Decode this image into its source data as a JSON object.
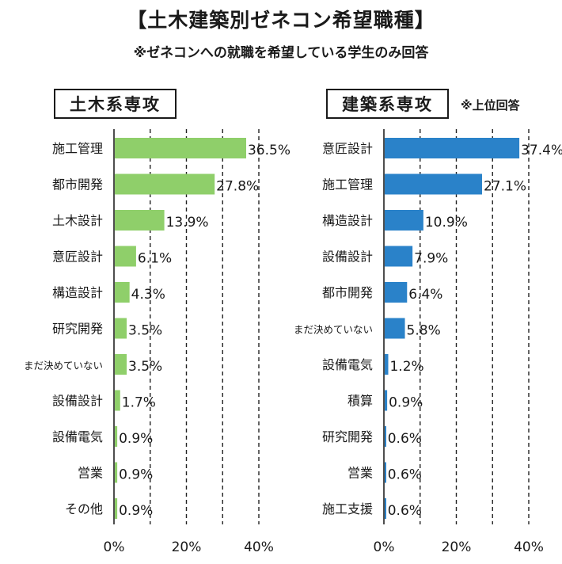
{
  "title": "【土木建築別ゼネコン希望職種】",
  "subtitle": "※ゼネコンへの就職を希望している学生のみ回答",
  "note": "※上位回答",
  "colors": {
    "left_bar": "#8fcf6a",
    "right_bar": "#2a82c9"
  },
  "chart_data": [
    {
      "type": "bar",
      "orientation": "horizontal",
      "title": "土木系専攻",
      "categories": [
        "施工管理",
        "都市開発",
        "土木設計",
        "意匠設計",
        "構造設計",
        "研究開発",
        "まだ決めていない",
        "設備設計",
        "設備電気",
        "営業",
        "その他"
      ],
      "values": [
        36.5,
        27.8,
        13.9,
        6.1,
        4.3,
        3.5,
        3.5,
        1.7,
        0.9,
        0.9,
        0.9
      ],
      "value_labels": [
        "36.5%",
        "27.8%",
        "13.9%",
        "6.1%",
        "4.3%",
        "3.5%",
        "3.5%",
        "1.7%",
        "0.9%",
        "0.9%",
        "0.9%"
      ],
      "xlim": [
        0,
        40
      ],
      "ticks": [
        "0%",
        "20%",
        "40%"
      ],
      "grid": "dashed vertical lines every 10%"
    },
    {
      "type": "bar",
      "orientation": "horizontal",
      "title": "建築系専攻",
      "categories": [
        "意匠設計",
        "施工管理",
        "構造設計",
        "設備設計",
        "都市開発",
        "まだ決めていない",
        "設備電気",
        "積算",
        "研究開発",
        "営業",
        "施工支援"
      ],
      "values": [
        37.4,
        27.1,
        10.9,
        7.9,
        6.4,
        5.8,
        1.2,
        0.9,
        0.6,
        0.6,
        0.6
      ],
      "value_labels": [
        "37.4%",
        "27.1%",
        "10.9%",
        "7.9%",
        "6.4%",
        "5.8%",
        "1.2%",
        "0.9%",
        "0.6%",
        "0.6%",
        "0.6%"
      ],
      "xlim": [
        0,
        40
      ],
      "ticks": [
        "0%",
        "20%",
        "40%"
      ],
      "grid": "dashed vertical lines every 10%"
    }
  ]
}
